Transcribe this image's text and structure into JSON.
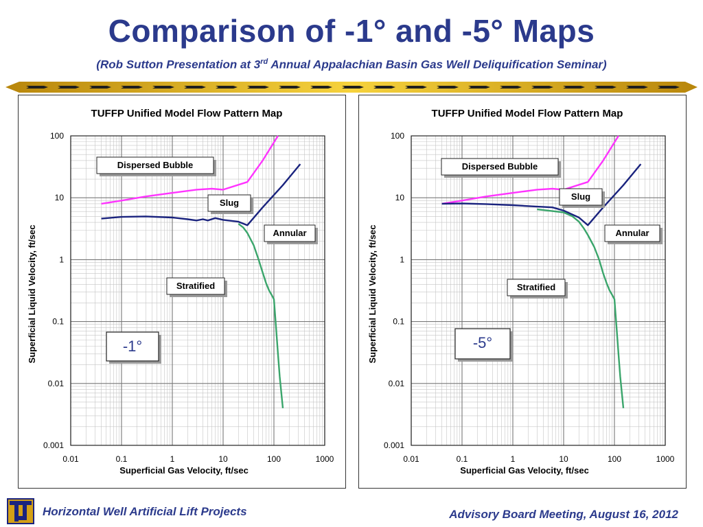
{
  "slide": {
    "title": "Comparison of -1° and -5° Maps",
    "subtitle_main": "(Rob Sutton Presentation at 3",
    "subtitle_sup": "rd",
    "subtitle_rest": " Annual Appalachian Basin Gas Well Deliquification Seminar)",
    "footer_left": "Horizontal Well Artificial Lift Projects",
    "footer_right": "Advisory Board Meeting, August 16, 2012",
    "logo_letters": "TU"
  },
  "colors": {
    "title": "#2b3a8c",
    "dispersed_bubble_line": "#ff33ff",
    "slug_annular_line": "#1a237e",
    "stratified_line": "#3aa56b",
    "grid": "#9a9a9a",
    "stripe_gold": "#e8c21c"
  },
  "chart_data": [
    {
      "type": "line",
      "title": "TUFFP Unified Model Flow Pattern Map",
      "xlabel": "Superficial Gas Velocity, ft/sec",
      "ylabel": "Superficial Liquid Velocity, ft/sec",
      "xscale": "log",
      "yscale": "log",
      "xlim": [
        0.01,
        1000
      ],
      "ylim": [
        0.001,
        100
      ],
      "xticks": [
        "0.01",
        "0.1",
        "1",
        "10",
        "100",
        "1000"
      ],
      "yticks": [
        "0.001",
        "0.01",
        "0.1",
        "1",
        "10",
        "100"
      ],
      "grid": true,
      "regions": [
        "Dispersed Bubble",
        "Slug",
        "Annular",
        "Stratified"
      ],
      "angle_label": "-1°",
      "series": [
        {
          "color": "#ff33ff",
          "x": [
            0.04,
            0.1,
            0.3,
            1,
            3,
            6,
            10,
            30,
            60,
            120
          ],
          "y": [
            8,
            9,
            10.5,
            12,
            13.5,
            14,
            13.5,
            18,
            40,
            100
          ]
        },
        {
          "color": "#1a237e",
          "x": [
            0.04,
            0.1,
            0.3,
            1,
            2,
            3,
            4,
            5,
            7,
            10,
            20,
            30,
            60,
            150,
            330
          ],
          "y": [
            4.6,
            4.9,
            5.0,
            4.8,
            4.5,
            4.3,
            4.5,
            4.3,
            4.7,
            4.4,
            4.1,
            3.6,
            7,
            16,
            35
          ]
        },
        {
          "color": "#3aa56b",
          "x": [
            20,
            25,
            30,
            40,
            50,
            60,
            70,
            80,
            90,
            100,
            110,
            120,
            130,
            140,
            150
          ],
          "y": [
            3.8,
            3.3,
            2.7,
            1.7,
            1.0,
            0.62,
            0.42,
            0.32,
            0.27,
            0.23,
            0.08,
            0.03,
            0.013,
            0.007,
            0.004
          ]
        }
      ]
    },
    {
      "type": "line",
      "title": "TUFFP Unified Model Flow Pattern Map",
      "xlabel": "Superficial Gas Velocity, ft/sec",
      "ylabel": "Superficial Liquid Velocity, ft/sec",
      "xscale": "log",
      "yscale": "log",
      "xlim": [
        0.01,
        1000
      ],
      "ylim": [
        0.001,
        100
      ],
      "xticks": [
        "0.01",
        "0.1",
        "1",
        "10",
        "100",
        "1000"
      ],
      "yticks": [
        "0.001",
        "0.01",
        "0.1",
        "1",
        "10",
        "100"
      ],
      "grid": true,
      "regions": [
        "Dispersed Bubble",
        "Slug",
        "Annular",
        "Stratified"
      ],
      "angle_label": "-5°",
      "series": [
        {
          "color": "#ff33ff",
          "x": [
            0.04,
            0.1,
            0.3,
            1,
            3,
            6,
            10,
            30,
            60,
            120
          ],
          "y": [
            8,
            9,
            10.5,
            12,
            13.5,
            14,
            13.5,
            18,
            40,
            100
          ]
        },
        {
          "color": "#1a237e",
          "x": [
            0.04,
            0.1,
            0.3,
            1,
            3,
            6,
            10,
            20,
            30,
            60,
            150,
            330
          ],
          "y": [
            8,
            8.1,
            7.9,
            7.6,
            7.2,
            7.0,
            6.2,
            4.8,
            3.6,
            7,
            16,
            35
          ]
        },
        {
          "color": "#3aa56b",
          "x": [
            3,
            5,
            10,
            15,
            20,
            25,
            30,
            40,
            50,
            60,
            70,
            80,
            90,
            100,
            110,
            120,
            130,
            140,
            150
          ],
          "y": [
            6.5,
            6.2,
            5.8,
            5.0,
            4.1,
            3.2,
            2.5,
            1.6,
            1.0,
            0.6,
            0.42,
            0.32,
            0.27,
            0.23,
            0.08,
            0.03,
            0.013,
            0.007,
            0.004
          ]
        }
      ]
    }
  ]
}
